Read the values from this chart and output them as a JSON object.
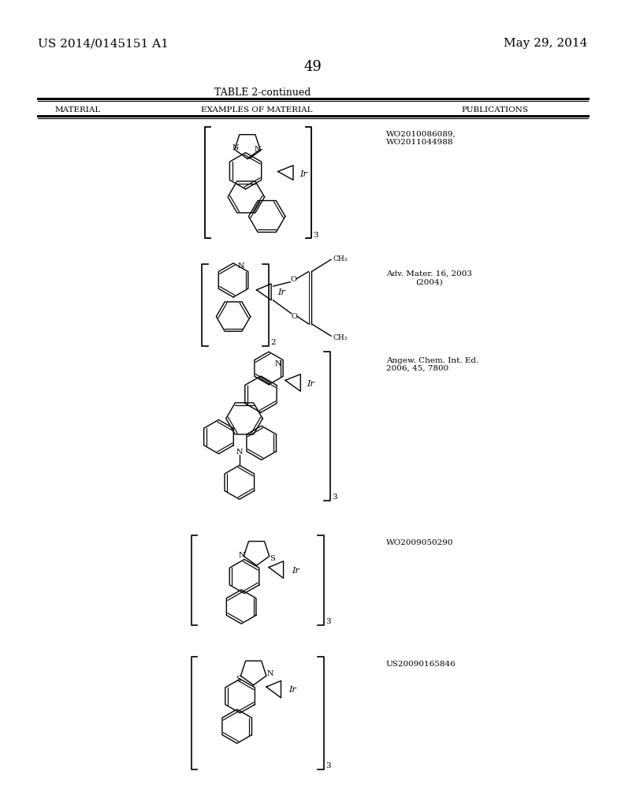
{
  "page_number": "49",
  "left_header": "US 2014/0145151 A1",
  "right_header": "May 29, 2014",
  "table_title": "TABLE 2-continued",
  "col1_header": "MATERIAL",
  "col2_header": "EXAMPLES OF MATERIAL",
  "col3_header": "PUBLICATIONS",
  "pub1": "WO2010086089,\nWO2011044988",
  "pub2": "Adv. Mater. 16, 2003\n(2004)",
  "pub3": "Angew. Chem. Int. Ed.\n2006, 45, 7800",
  "pub4": "WO2009050290",
  "pub5": "US20090165846",
  "bg_color": "#ffffff",
  "text_color": "#000000",
  "line_color": "#000000"
}
